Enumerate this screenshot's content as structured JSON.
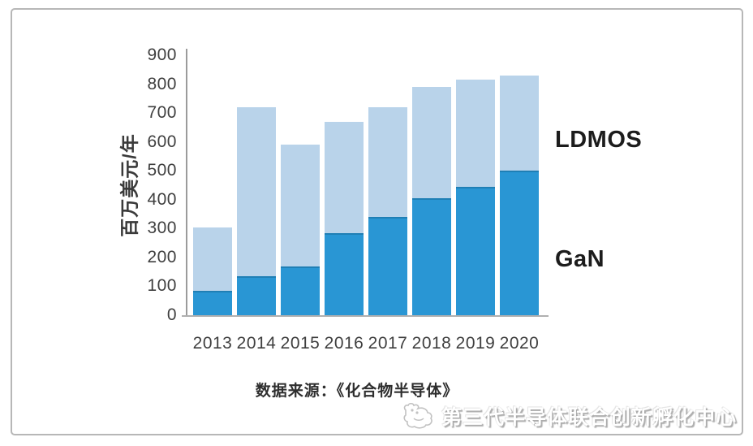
{
  "chart_data": {
    "type": "bar",
    "stacked": true,
    "title": "",
    "xlabel": "",
    "ylabel": "百万美元/年",
    "ylim": [
      0,
      900
    ],
    "yticks": [
      0,
      100,
      200,
      300,
      400,
      500,
      600,
      700,
      800,
      900
    ],
    "grid": false,
    "legend_position": "right-annotations",
    "categories": [
      "2013",
      "2014",
      "2015",
      "2016",
      "2017",
      "2018",
      "2019",
      "2020"
    ],
    "series": [
      {
        "name": "GaN",
        "color": "#2996d4",
        "values": [
          85,
          135,
          170,
          285,
          340,
          405,
          445,
          500
        ]
      },
      {
        "name": "LDMOS",
        "color": "#b9d3ea",
        "values": [
          220,
          585,
          420,
          385,
          380,
          385,
          370,
          330
        ]
      }
    ],
    "totals": [
      305,
      720,
      590,
      670,
      720,
      790,
      815,
      830
    ]
  },
  "source": {
    "text": "数据来源：《化合物半导体》"
  },
  "footer": {
    "watermark_text": "第三代半导体联合创新孵化中心",
    "logo_icon": "incubator-bird-logo"
  },
  "colors": {
    "gan_bar": "#2996d4",
    "gan_bar_edge": "#1f7fb5",
    "ldmos_bar": "#b9d3ea",
    "axis_line": "#9b9b9b",
    "frame_border": "#b7b7b7",
    "text_dark": "#2e2e2e",
    "watermark_gray": "#b0b0b0"
  }
}
